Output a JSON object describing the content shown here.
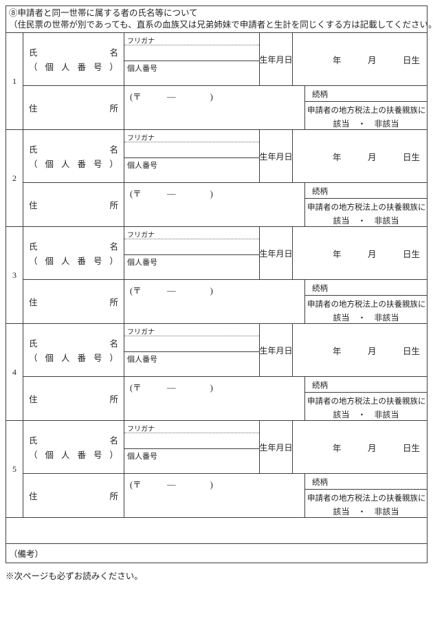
{
  "header": {
    "line1": "⑧申請者と同一世帯に属する者の氏名等について",
    "line2": "（住民票の世帯が別であっても、直系の血族又は兄弟姉妹で申請者と生計を同じくする方は記載してください。）"
  },
  "table": {
    "row_numbers": [
      "1",
      "2",
      "3",
      "4",
      "5"
    ],
    "labels": {
      "name_line1": [
        "氏",
        "名"
      ],
      "name_line2": [
        "（",
        "個",
        "人",
        "番",
        "号",
        "）"
      ],
      "furigana": "フリガナ",
      "my_number": "個人番号",
      "birth_label": "生年月日",
      "birth_units": [
        "年",
        "月",
        "日生"
      ],
      "addr_line": [
        "住",
        "所"
      ],
      "postal": "(〒　　　—　　　　)",
      "relationship": "続柄",
      "dependent_line1": "申請者の地方税法上の扶養親族に",
      "dependent_choice": "該当　・　非該当",
      "remarks": "（備考）"
    }
  },
  "footer": {
    "note": "※次ページも必ずお読みください。"
  }
}
